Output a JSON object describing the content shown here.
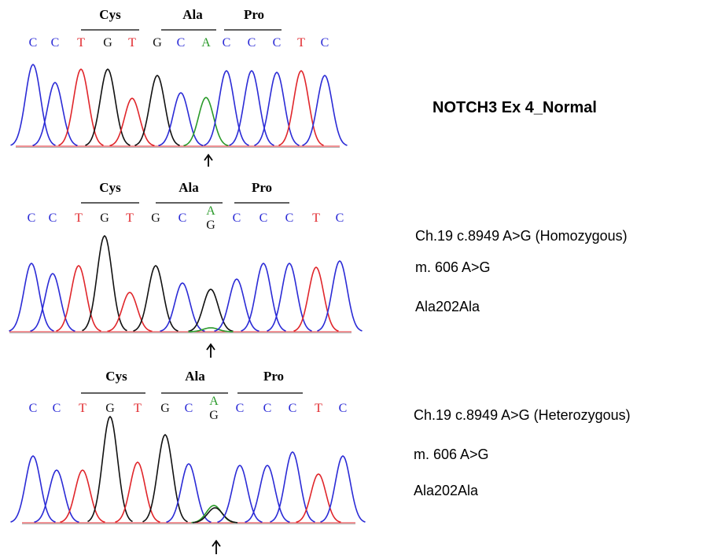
{
  "panels": [
    {
      "codons": [
        "Cys",
        "Ala",
        "Pro"
      ],
      "bases": [
        "C",
        "C",
        "T",
        "G",
        "T",
        "G",
        "C",
        "A",
        "C",
        "C",
        "C",
        "T",
        "C"
      ],
      "annotations": [
        "NOTCH3 Ex 4_Normal"
      ]
    },
    {
      "codons": [
        "Cys",
        "Ala",
        "Pro"
      ],
      "bases": [
        "C",
        "C",
        "T",
        "G",
        "T",
        "G",
        "C",
        [
          "A",
          "G"
        ],
        "C",
        "C",
        "C",
        "T",
        "C"
      ],
      "annotations": [
        "Ch.19 c.8949 A>G (Homozygous)",
        "m. 606 A>G",
        "Ala202Ala"
      ]
    },
    {
      "codons": [
        "Cys",
        "Ala",
        "Pro"
      ],
      "bases": [
        "C",
        "C",
        "T",
        "G",
        "T",
        "G",
        "C",
        [
          "A",
          "G"
        ],
        "C",
        "C",
        "C",
        "T",
        "C"
      ],
      "annotations": [
        "Ch.19 c.8949 A>G (Heterozygous)",
        "m. 606 A>G",
        "Ala202Ala"
      ]
    }
  ]
}
